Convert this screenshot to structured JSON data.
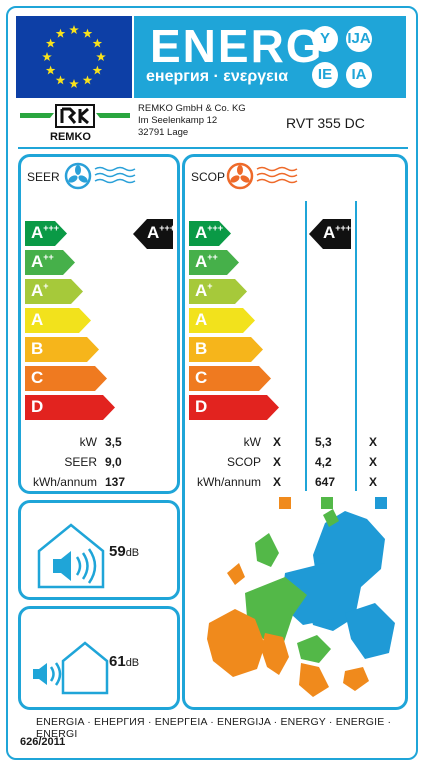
{
  "header": {
    "energy_word": "ENERG",
    "energy_sub": "енергия · ενεργεια",
    "lang_circles": [
      "Y",
      "IJA",
      "IE",
      "IA"
    ]
  },
  "supplier": {
    "logo_text": "REMKO",
    "address_lines": [
      "REMKO GmbH & Co. KG",
      "Im Seelenkamp 12",
      "32791 Lage"
    ],
    "model": "RVT 355 DC"
  },
  "seer": {
    "title": "SEER",
    "rating_class": "A",
    "rating_sup": "+++",
    "rows": [
      {
        "label": "kW",
        "value": "3,5"
      },
      {
        "label": "SEER",
        "value": "9,0"
      },
      {
        "label": "kWh/annum",
        "value": "137"
      }
    ]
  },
  "scop": {
    "title": "SCOP",
    "rating_class": "A",
    "rating_sup": "+++",
    "labels": [
      "kW",
      "SCOP",
      "kWh/annum"
    ],
    "columns": [
      {
        "values": [
          "X",
          "X",
          "X"
        ],
        "color": "#f08a1c"
      },
      {
        "values": [
          "5,3",
          "4,2",
          "647"
        ],
        "color": "#53b848"
      },
      {
        "values": [
          "X",
          "X",
          "X"
        ],
        "color": "#1f9ad6"
      }
    ]
  },
  "scale": [
    {
      "letter": "A",
      "sup": "+++",
      "color": "#0a9a46"
    },
    {
      "letter": "A",
      "sup": "++",
      "color": "#46b04a"
    },
    {
      "letter": "A",
      "sup": "+",
      "color": "#a6c93a"
    },
    {
      "letter": "A",
      "sup": "",
      "color": "#f2e21c"
    },
    {
      "letter": "B",
      "sup": "",
      "color": "#f6b51b"
    },
    {
      "letter": "C",
      "sup": "",
      "color": "#ef7a20"
    },
    {
      "letter": "D",
      "sup": "",
      "color": "#e2231f"
    }
  ],
  "noise": {
    "indoor_value": "59",
    "indoor_unit": "dB",
    "outdoor_value": "61",
    "outdoor_unit": "dB"
  },
  "footer": {
    "energy_words": "ENERGIA · ЕНЕРГИЯ · ΕΝΕΡΓΕΙΑ · ENERGIJA · ENERGY · ENERGIE · ENERGI",
    "regulation": "626/2011"
  },
  "colors": {
    "frame": "#1fa5d8",
    "eu_blue": "#0d3fa6",
    "star": "#f8e21c",
    "logo_green": "#2aa63f"
  }
}
